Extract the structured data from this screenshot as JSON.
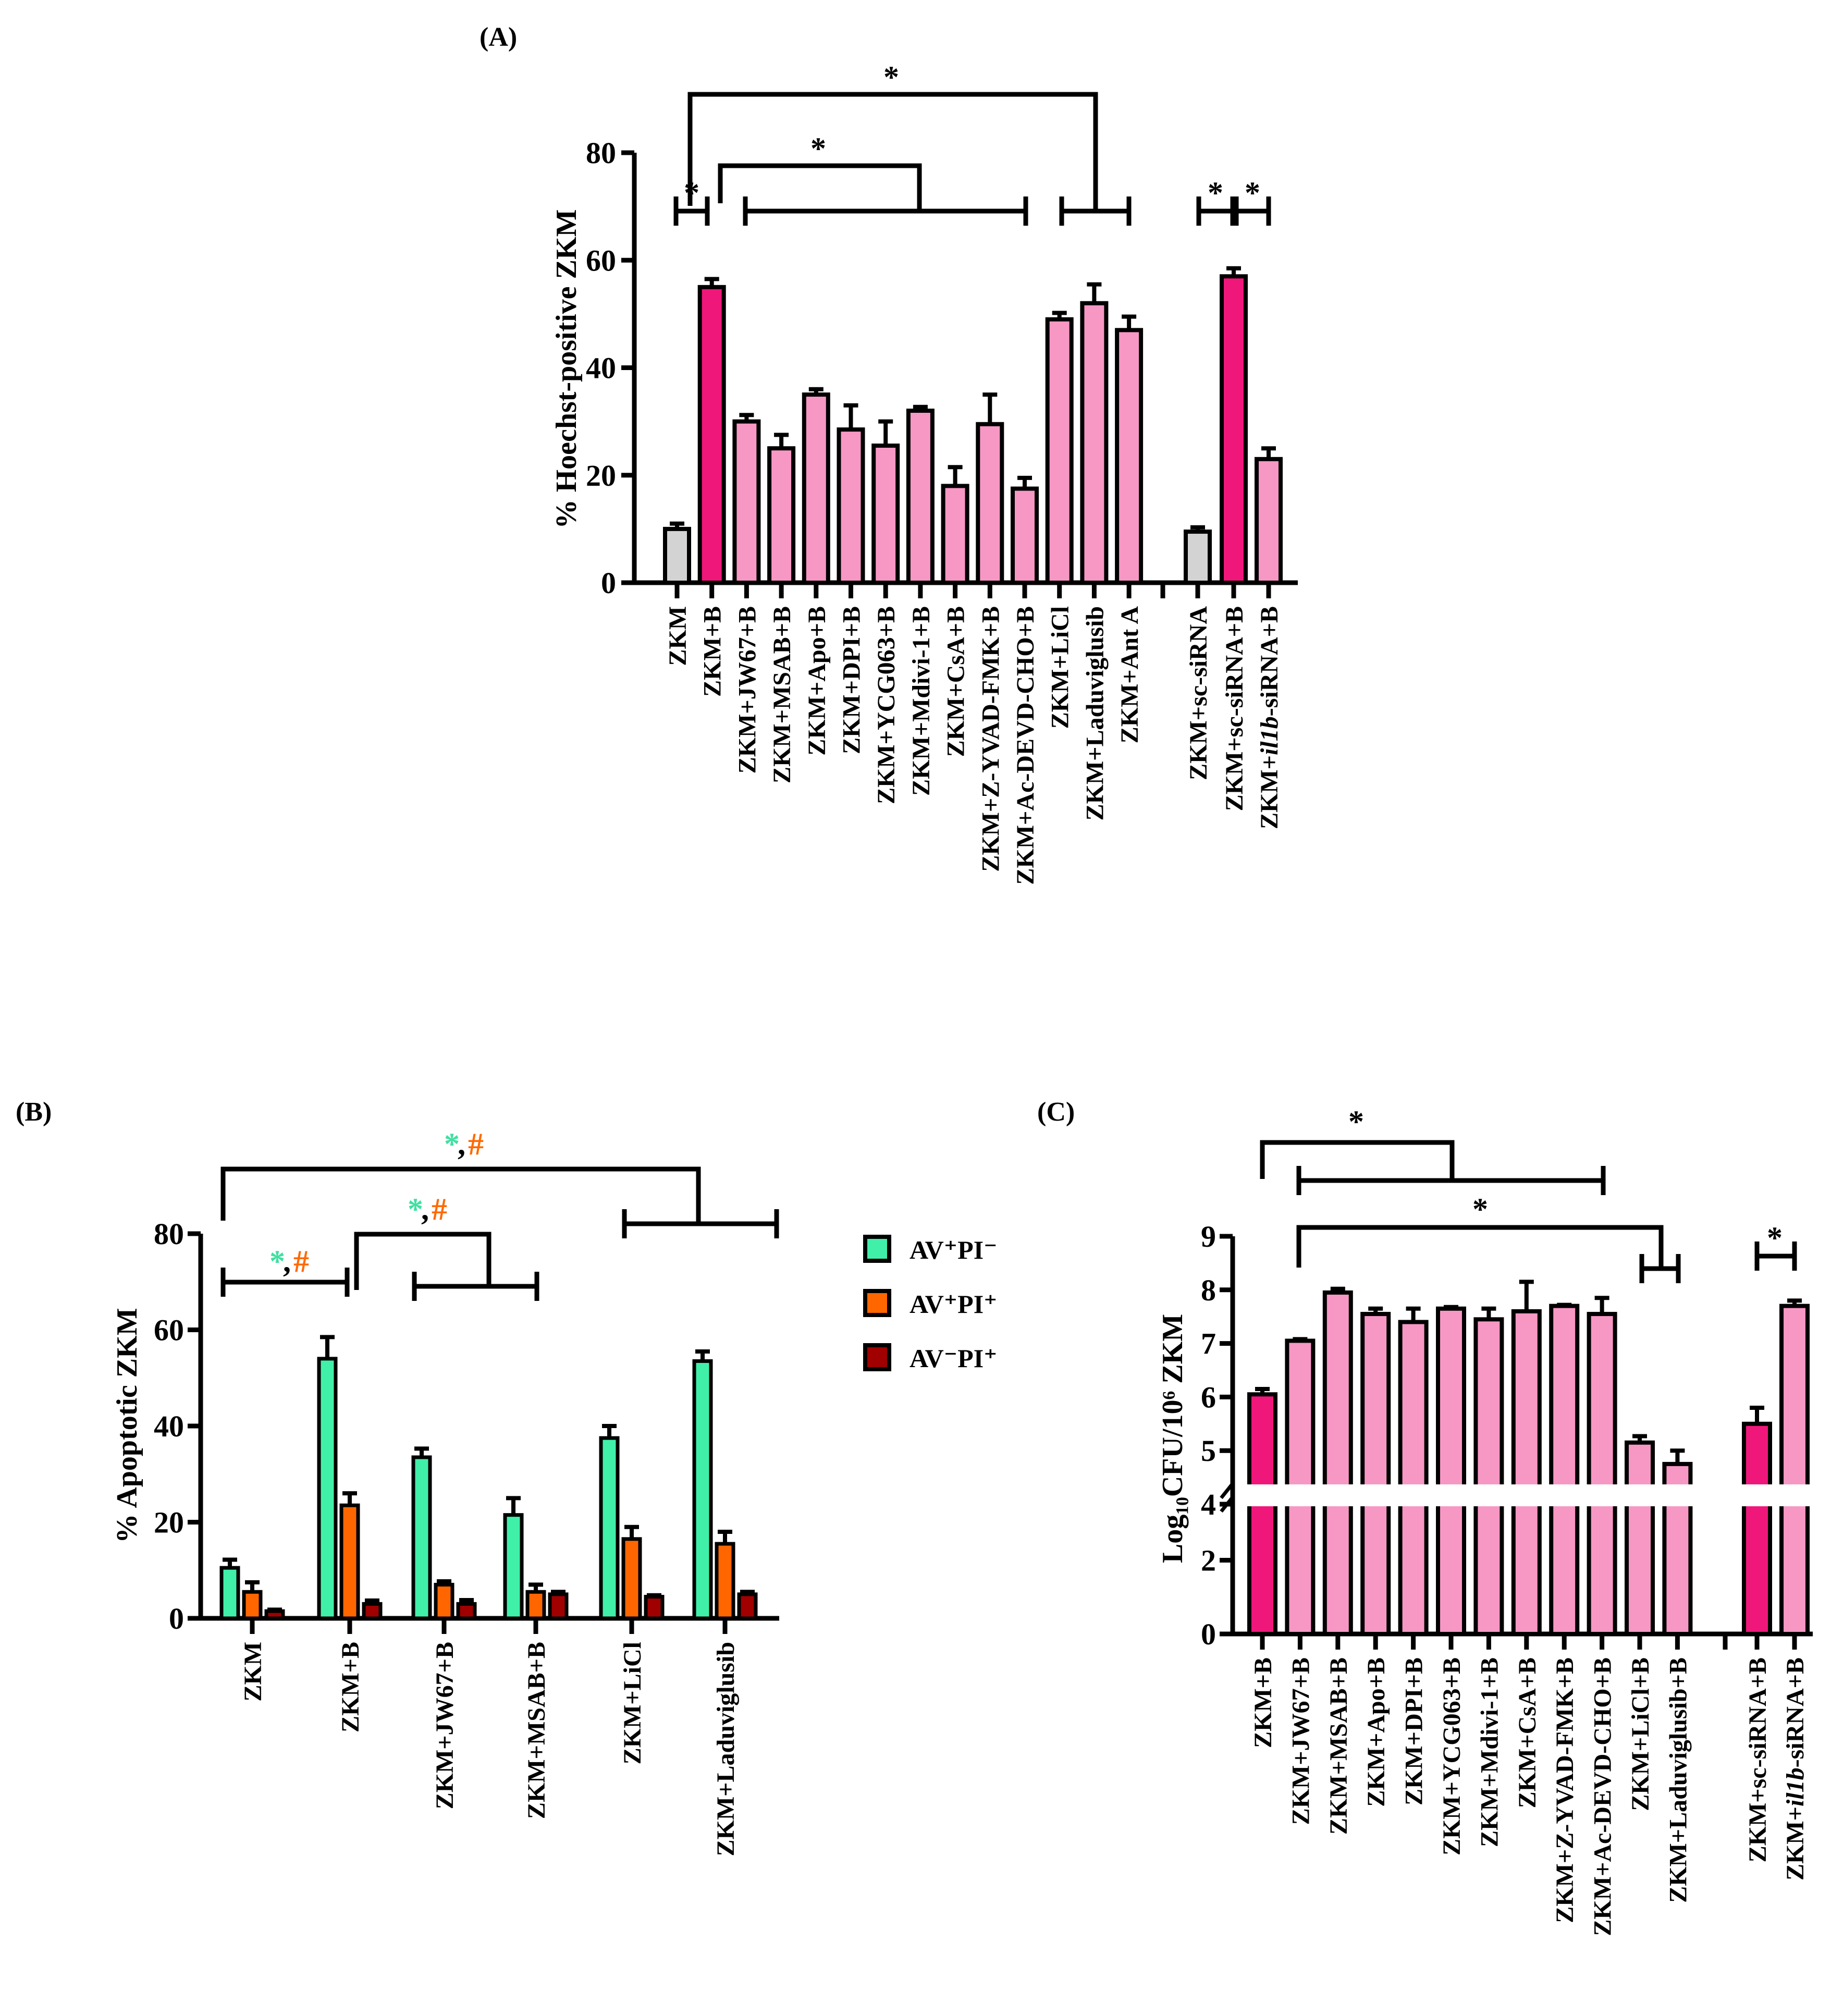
{
  "colors": {
    "control": "#d3d3d3",
    "infected": "#f0177b",
    "treated": "#f797c4",
    "av_pos_pi_neg": "#40f0a8",
    "av_pos_pi_pos": "#ff6600",
    "av_neg_pi_pos": "#a00000",
    "star_green": "#3ee0a0",
    "hash_orange": "#ff6a00"
  },
  "chart_data": [
    {
      "panel": "(A)",
      "type": "bar",
      "ylabel": "% Hoechst-positive ZKM",
      "ylim": [
        0,
        80
      ],
      "yticks": [
        "0",
        "20",
        "40",
        "60",
        "80"
      ],
      "categories": [
        "ZKM",
        "ZKM+B",
        "ZKM+JW67+B",
        "ZKM+MSAB+B",
        "ZKM+Apo+B",
        "ZKM+DPI+B",
        "ZKM+YCG063+B",
        "ZKM+Mdivi-1+B",
        "ZKM+CsA+B",
        "ZKM+Z-YVAD-FMK+B",
        "ZKM+Ac-DEVD-CHO+B",
        "ZKM+LiCl",
        "ZKM+Laduviglusib",
        "ZKM+Ant A",
        "ZKM+sc-siRNA",
        "ZKM+sc-siRNA+B",
        "ZKM+il1b-siRNA+B"
      ],
      "values": [
        10,
        55,
        30,
        25,
        35,
        28.5,
        25.5,
        32,
        18,
        29.5,
        17.5,
        49,
        52,
        47,
        9.5,
        57,
        23
      ],
      "errors": [
        1,
        1.5,
        1.2,
        2.5,
        1,
        4.5,
        4.5,
        0.7,
        3.5,
        5.5,
        2,
        1.2,
        3.5,
        2.5,
        0.8,
        1.5,
        2
      ],
      "bar_color_keys": [
        "control",
        "infected",
        "treated",
        "treated",
        "treated",
        "treated",
        "treated",
        "treated",
        "treated",
        "treated",
        "treated",
        "treated",
        "treated",
        "treated",
        "control",
        "infected",
        "treated"
      ],
      "significance": [
        "*",
        "*",
        "*",
        "*",
        "*"
      ]
    },
    {
      "panel": "(B)",
      "type": "bar",
      "ylabel": "% Apoptotic ZKM",
      "ylim": [
        0,
        80
      ],
      "yticks": [
        "0",
        "20",
        "40",
        "60",
        "80"
      ],
      "categories": [
        "ZKM",
        "ZKM+B",
        "ZKM+JW67+B",
        "ZKM+MSAB+B",
        "ZKM+LiCl",
        "ZKM+Laduviglusib"
      ],
      "series": [
        {
          "name": "AV⁺PI⁻",
          "color_key": "av_pos_pi_neg",
          "values": [
            10.5,
            54,
            33.5,
            21.5,
            37.5,
            53.5
          ],
          "errors": [
            1.7,
            4.5,
            1.8,
            3.5,
            2.5,
            2
          ]
        },
        {
          "name": "AV⁺PI⁺",
          "color_key": "av_pos_pi_pos",
          "values": [
            5.5,
            23.5,
            7,
            5.5,
            16.5,
            15.5
          ],
          "errors": [
            2,
            2.5,
            0.7,
            1.5,
            2.5,
            2.5
          ]
        },
        {
          "name": "AV⁻PI⁺",
          "color_key": "av_neg_pi_pos",
          "values": [
            1.5,
            3,
            3,
            5,
            4.5,
            5
          ],
          "errors": [
            0.3,
            0.7,
            0.8,
            0.5,
            0.3,
            0.5
          ]
        }
      ],
      "legend_position": "right",
      "significance": {
        "star": "*",
        "sep": ",",
        "hash": "#"
      }
    },
    {
      "panel": "(C)",
      "type": "bar",
      "ylabel": "Log₁₀CFU/10⁶ ZKM",
      "ylim": [
        0,
        9
      ],
      "axis_break": [
        4,
        4
      ],
      "yticks": [
        "0",
        "2",
        "4",
        "5",
        "6",
        "7",
        "8",
        "9"
      ],
      "categories": [
        "ZKM+B",
        "ZKM+JW67+B",
        "ZKM+MSAB+B",
        "ZKM+Apo+B",
        "ZKM+DPI+B",
        "ZKM+YCG063+B",
        "ZKM+Mdivi-1+B",
        "ZKM+CsA+B",
        "ZKM+Z-YVAD-FMK+B",
        "ZKM+Ac-DEVD-CHO+B",
        "ZKM+LiCl+B",
        "ZKM+Laduviglusib+B",
        "ZKM+sc-siRNA+B",
        "ZKM+il1b-siRNA+B"
      ],
      "values": [
        6.05,
        7.05,
        7.95,
        7.55,
        7.4,
        7.65,
        7.45,
        7.6,
        7.7,
        7.55,
        5.15,
        4.75,
        5.5,
        7.7
      ],
      "errors": [
        0.1,
        0.03,
        0.07,
        0.1,
        0.25,
        0.03,
        0.2,
        0.55,
        0.02,
        0.3,
        0.12,
        0.25,
        0.3,
        0.1
      ],
      "bar_color_keys": [
        "infected",
        "treated",
        "treated",
        "treated",
        "treated",
        "treated",
        "treated",
        "treated",
        "treated",
        "treated",
        "treated",
        "treated",
        "infected",
        "treated"
      ],
      "significance": [
        "*",
        "*",
        "*"
      ]
    }
  ]
}
